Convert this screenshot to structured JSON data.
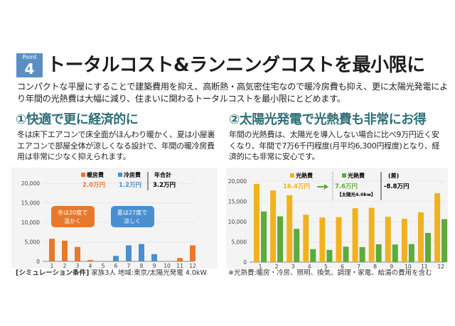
{
  "header": {
    "badge_label": "Point",
    "badge_number": "4",
    "title": "トータルコスト&ランニングコストを最小限に",
    "lead": "コンパクトな平屋にすることで建築費用を抑え、高断熱・高気密住宅なので暖冷房費も抑え、更に太陽光発電により年間の光熱費は大幅に減り、住まいに関わるトータルコストを最小限にとどめます。"
  },
  "left": {
    "heading": "①快適で更に経済的に",
    "text": "冬は床下エアコンで床全面がほんわり暖かく、夏は小屋裏エアコンで部屋全体が涼しくなる設計で、年間の暖冷房費用は非常に少なく抑えられます。",
    "caption_bold": "[シミュレーション条件]",
    "caption": " 家族3人 地域:東京/太陽光発電 4.0kW"
  },
  "right": {
    "heading": "②太陽光発電で光熱費も非常にお得",
    "text": "年間の光熱費は、太陽光を導入しない場合に比べ9万円近く安くなり、年間で7万6千円程度(月平均6,300円程度)となり、経済的にも非常に安心です。",
    "caption": "※光熱費:暖房・冷房、照明、換気、調理・家電、給湯の費用を含む"
  },
  "colors": {
    "heating": "#e8792c",
    "cooling": "#4a8fd0",
    "without_solar": "#f0b21e",
    "with_solar": "#5cab3c",
    "heading": "#2f6f77",
    "badge": "#5b8fc4"
  },
  "chart_data": [
    {
      "type": "bar",
      "categories": [
        "1",
        "2",
        "3",
        "4",
        "5",
        "6",
        "7",
        "8",
        "9",
        "10",
        "11",
        "12"
      ],
      "ylim": [
        0,
        20000
      ],
      "yticks": [
        "0",
        "5,000",
        "10,000",
        "15,000",
        "20,000"
      ],
      "grid": true,
      "series": [
        {
          "name": "暖房費",
          "values": [
            5800,
            5300,
            3700,
            350,
            0,
            0,
            0,
            0,
            0,
            0,
            850,
            4100
          ]
        },
        {
          "name": "冷房費",
          "values": [
            0,
            0,
            0,
            0,
            0,
            1400,
            4100,
            4450,
            1850,
            0,
            0,
            0
          ]
        }
      ],
      "legend": {
        "heating": "暖房費",
        "heating_total": "2.0万円",
        "cooling": "冷房費",
        "cooling_total": "1.2万円",
        "total_label": "年合計",
        "total": "3.2万円"
      },
      "annotations": [
        "冬は20度で",
        "温かく",
        "夏は27度で",
        "涼しく"
      ]
    },
    {
      "type": "bar",
      "categories": [
        "1",
        "2",
        "3",
        "4",
        "5",
        "6",
        "7",
        "8",
        "9",
        "10",
        "11",
        "12"
      ],
      "ylim": [
        0,
        20000
      ],
      "yticks": [
        "0",
        "5,000",
        "10,000",
        "15,000",
        "20,000"
      ],
      "grid": true,
      "series": [
        {
          "name": "光熱費",
          "values": [
            19300,
            17700,
            16500,
            11700,
            11000,
            11100,
            13300,
            13400,
            11200,
            10700,
            12300,
            17000
          ]
        },
        {
          "name": "光熱費",
          "values": [
            12500,
            11300,
            8200,
            3200,
            3000,
            3800,
            3700,
            4400,
            4350,
            4450,
            7200,
            10600
          ]
        }
      ],
      "legend": {
        "without": "光熱費",
        "without_total": "16.4万円",
        "with": "光熱費",
        "with_total": "7.6万円",
        "with_note": "【太陽光4.0kw】",
        "diff_label": "(差)",
        "diff": "-8.8万円"
      }
    }
  ]
}
